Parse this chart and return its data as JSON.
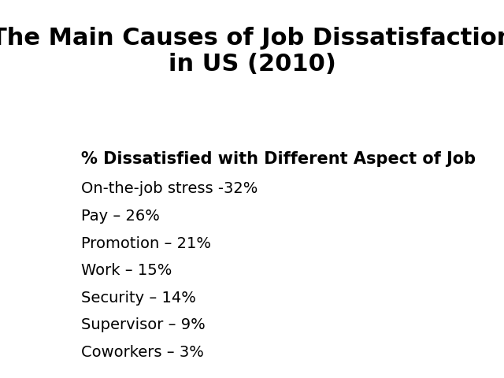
{
  "title_line1": "The Main Causes of Job Dissatisfaction",
  "title_line2": "in US (2010⧫",
  "title_fontsize": 22,
  "title_fontweight": "bold",
  "background_color": "#ffffff",
  "subtitle": "% Dissatisfied with Different Aspect of Job",
  "subtitle_fontsize": 15,
  "subtitle_fontweight": "bold",
  "items": [
    "On-the-job stress -32%",
    "Pay – 26%",
    "Promotion – 21%",
    "Work – 15%",
    "Security – 14%",
    "Supervisor – 9%",
    "Coworkers – 3%"
  ],
  "items_fontsize": 14,
  "items_fontweight": "normal",
  "text_color": "#000000"
}
